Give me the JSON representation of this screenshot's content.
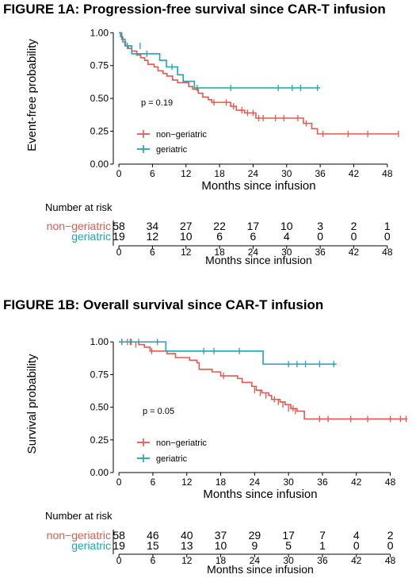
{
  "chart_data": [
    {
      "type": "line",
      "title": "FIGURE 1A: Progression-free survival since CAR-T infusion",
      "xlabel": "Months since infusion",
      "ylabel": "Event-free probability",
      "xlim": [
        -1,
        51
      ],
      "ylim": [
        0,
        1.05
      ],
      "xticks": [
        0,
        6,
        12,
        18,
        24,
        30,
        36,
        42,
        48
      ],
      "xtick_labels": [
        "0",
        "6",
        "12",
        "18",
        "24",
        "30",
        "36",
        "42",
        "48"
      ],
      "yticks": [
        0,
        0.25,
        0.5,
        0.75,
        1
      ],
      "ytick_labels": [
        "0.00",
        "0.25",
        "0.50",
        "0.75",
        "1.00"
      ],
      "annotation": "p = 0.19",
      "legend_position": "bottom-left",
      "grid": false,
      "series": [
        {
          "name": "non−geriatric",
          "color": "#E8574F",
          "steps": [
            [
              0,
              1.0
            ],
            [
              0.3,
              0.97
            ],
            [
              0.7,
              0.93
            ],
            [
              1.2,
              0.9
            ],
            [
              1.7,
              0.88
            ],
            [
              2.3,
              0.86
            ],
            [
              3.2,
              0.83
            ],
            [
              3.9,
              0.81
            ],
            [
              4.6,
              0.79
            ],
            [
              5.2,
              0.76
            ],
            [
              6.3,
              0.74
            ],
            [
              7.0,
              0.71
            ],
            [
              7.9,
              0.69
            ],
            [
              8.6,
              0.67
            ],
            [
              9.6,
              0.64
            ],
            [
              10.5,
              0.62
            ],
            [
              12.5,
              0.59
            ],
            [
              13.2,
              0.57
            ],
            [
              14.2,
              0.54
            ],
            [
              15.0,
              0.51
            ],
            [
              16.0,
              0.49
            ],
            [
              16.6,
              0.47
            ],
            [
              20.0,
              0.44
            ],
            [
              21.0,
              0.41
            ],
            [
              22.5,
              0.39
            ],
            [
              24.5,
              0.35
            ],
            [
              33.0,
              0.31
            ],
            [
              34.5,
              0.27
            ],
            [
              35.5,
              0.23
            ],
            [
              50,
              0.23
            ]
          ],
          "censors": [
            [
              17.0,
              0.47
            ],
            [
              19.2,
              0.47
            ],
            [
              20.5,
              0.44
            ],
            [
              22.0,
              0.41
            ],
            [
              23.0,
              0.39
            ],
            [
              24.0,
              0.39
            ],
            [
              25.0,
              0.35
            ],
            [
              25.8,
              0.35
            ],
            [
              28.0,
              0.35
            ],
            [
              29.5,
              0.35
            ],
            [
              32.0,
              0.35
            ],
            [
              33.5,
              0.31
            ],
            [
              36.5,
              0.23
            ],
            [
              41.0,
              0.23
            ],
            [
              44.5,
              0.23
            ],
            [
              50.0,
              0.23
            ]
          ]
        },
        {
          "name": "geriatric",
          "color": "#1BA6B0",
          "steps": [
            [
              0,
              1.0
            ],
            [
              0.5,
              0.95
            ],
            [
              1.1,
              0.9
            ],
            [
              2.3,
              0.84
            ],
            [
              7.3,
              0.79
            ],
            [
              8.5,
              0.74
            ],
            [
              10.5,
              0.68
            ],
            [
              11.5,
              0.63
            ],
            [
              13.5,
              0.58
            ],
            [
              36,
              0.58
            ]
          ],
          "censors": [
            [
              1.5,
              0.9
            ],
            [
              3.8,
              0.9
            ],
            [
              5.0,
              0.84
            ],
            [
              9.5,
              0.74
            ],
            [
              14.0,
              0.58
            ],
            [
              20.0,
              0.58
            ],
            [
              28.5,
              0.58
            ],
            [
              31.0,
              0.58
            ],
            [
              32.5,
              0.58
            ],
            [
              35.5,
              0.58
            ]
          ]
        }
      ],
      "risk_table": {
        "title": "Number at risk",
        "times": [
          0,
          6,
          12,
          18,
          24,
          30,
          36,
          42,
          48
        ],
        "xlabel": "Months since infusion",
        "rows": [
          {
            "name": "non−geriatric",
            "color": "#E8574F",
            "counts": [
              "58",
              "34",
              "27",
              "22",
              "17",
              "10",
              "3",
              "2",
              "1"
            ]
          },
          {
            "name": "geriatric",
            "color": "#1BA6B0",
            "counts": [
              "19",
              "12",
              "10",
              "6",
              "6",
              "4",
              "0",
              "0",
              "0"
            ]
          }
        ]
      }
    },
    {
      "type": "line",
      "title": "FIGURE 1B: Overall survival since CAR-T infusion",
      "xlabel": "Months since infusion",
      "ylabel": "Survival probability",
      "xlim": [
        -1,
        51
      ],
      "ylim": [
        0,
        1.05
      ],
      "xticks": [
        0,
        6,
        12,
        18,
        24,
        30,
        36,
        42,
        48
      ],
      "xtick_labels": [
        "0",
        "6",
        "12",
        "18",
        "24",
        "30",
        "36",
        "42",
        "48"
      ],
      "yticks": [
        0,
        0.25,
        0.5,
        0.75,
        1
      ],
      "ytick_labels": [
        "0.00",
        "0.25",
        "0.50",
        "0.75",
        "1.00"
      ],
      "annotation": "p = 0.05",
      "legend_position": "bottom-left",
      "grid": false,
      "series": [
        {
          "name": "non−geriatric",
          "color": "#E8574F",
          "steps": [
            [
              0,
              1.0
            ],
            [
              3.5,
              0.98
            ],
            [
              4.5,
              0.96
            ],
            [
              5.5,
              0.93
            ],
            [
              8.5,
              0.91
            ],
            [
              10.0,
              0.88
            ],
            [
              12.5,
              0.86
            ],
            [
              13.8,
              0.84
            ],
            [
              14.2,
              0.79
            ],
            [
              16.5,
              0.77
            ],
            [
              18.0,
              0.74
            ],
            [
              21.0,
              0.72
            ],
            [
              21.8,
              0.69
            ],
            [
              23.5,
              0.66
            ],
            [
              24.3,
              0.63
            ],
            [
              25.3,
              0.61
            ],
            [
              26.5,
              0.59
            ],
            [
              27.0,
              0.56
            ],
            [
              28.5,
              0.54
            ],
            [
              29.4,
              0.52
            ],
            [
              30.4,
              0.49
            ],
            [
              31.5,
              0.47
            ],
            [
              32.8,
              0.41
            ],
            [
              51,
              0.41
            ]
          ],
          "censors": [
            [
              0.5,
              1.0
            ],
            [
              1.5,
              1.0
            ],
            [
              2.2,
              1.0
            ],
            [
              3.0,
              0.98
            ],
            [
              5.8,
              0.93
            ],
            [
              18.5,
              0.74
            ],
            [
              24.0,
              0.63
            ],
            [
              25.0,
              0.61
            ],
            [
              26.0,
              0.59
            ],
            [
              27.5,
              0.56
            ],
            [
              28.2,
              0.54
            ],
            [
              29.0,
              0.52
            ],
            [
              30.0,
              0.49
            ],
            [
              30.8,
              0.49
            ],
            [
              31.2,
              0.47
            ],
            [
              35.5,
              0.41
            ],
            [
              37.0,
              0.41
            ],
            [
              41.0,
              0.41
            ],
            [
              44.0,
              0.41
            ],
            [
              48.0,
              0.41
            ],
            [
              49.8,
              0.41
            ],
            [
              50.8,
              0.41
            ]
          ]
        },
        {
          "name": "geriatric",
          "color": "#1BA6B0",
          "steps": [
            [
              0,
              1.0
            ],
            [
              8.3,
              0.93
            ],
            [
              25.5,
              0.83
            ],
            [
              38.5,
              0.83
            ]
          ],
          "censors": [
            [
              0.5,
              1.0
            ],
            [
              2.0,
              1.0
            ],
            [
              3.5,
              1.0
            ],
            [
              6.8,
              1.0
            ],
            [
              15.0,
              0.93
            ],
            [
              16.8,
              0.93
            ],
            [
              21.3,
              0.93
            ],
            [
              30.0,
              0.83
            ],
            [
              31.5,
              0.83
            ],
            [
              33.0,
              0.83
            ],
            [
              35.5,
              0.83
            ],
            [
              38.0,
              0.83
            ]
          ]
        }
      ],
      "risk_table": {
        "title": "Number at risk",
        "times": [
          0,
          6,
          12,
          18,
          24,
          30,
          36,
          42,
          48
        ],
        "xlabel": "Months since infusion",
        "rows": [
          {
            "name": "non−geriatric",
            "color": "#E8574F",
            "counts": [
              "58",
              "46",
              "40",
              "37",
              "29",
              "17",
              "7",
              "4",
              "2"
            ]
          },
          {
            "name": "geriatric",
            "color": "#1BA6B0",
            "counts": [
              "19",
              "15",
              "13",
              "10",
              "9",
              "5",
              "1",
              "0",
              "0"
            ]
          }
        ]
      }
    }
  ]
}
